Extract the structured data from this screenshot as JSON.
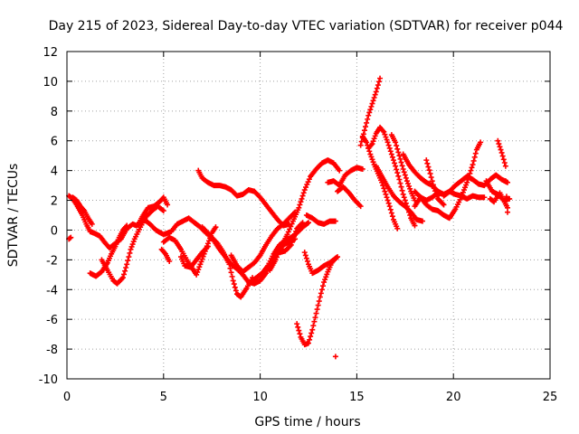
{
  "chart_data": {
    "type": "scatter",
    "title": "Day 215 of 2023, Sidereal Day-to-day VTEC variation (SDTVAR) for receiver p044",
    "xlabel": "GPS time / hours",
    "ylabel": "SDTVAR / TECUs",
    "xlim": [
      0,
      25
    ],
    "ylim": [
      -10,
      12
    ],
    "xticks": [
      0,
      5,
      10,
      15,
      20,
      25
    ],
    "yticks": [
      -10,
      -8,
      -6,
      -4,
      -2,
      0,
      2,
      4,
      6,
      8,
      10,
      12
    ],
    "grid": true,
    "marker": "+",
    "color": "#ff0000",
    "tracks": [
      [
        [
          0.1,
          2.3
        ],
        [
          0.3,
          2.1
        ],
        [
          0.5,
          1.7
        ],
        [
          0.8,
          1.0
        ],
        [
          1.0,
          0.4
        ],
        [
          1.2,
          -0.1
        ],
        [
          1.4,
          -0.2
        ],
        [
          1.7,
          -0.4
        ],
        [
          2.0,
          -0.9
        ],
        [
          2.2,
          -1.2
        ],
        [
          2.5,
          -0.9
        ],
        [
          2.8,
          -0.6
        ],
        [
          3.1,
          0.1
        ],
        [
          3.4,
          0.4
        ],
        [
          3.6,
          0.3
        ],
        [
          3.8,
          0.5
        ]
      ],
      [
        [
          0.1,
          -0.6
        ],
        [
          0.2,
          -0.5
        ]
      ],
      [
        [
          0.3,
          2.2
        ],
        [
          0.5,
          2.0
        ],
        [
          0.7,
          1.6
        ],
        [
          0.9,
          1.3
        ],
        [
          1.1,
          0.8
        ],
        [
          1.3,
          0.4
        ]
      ],
      [
        [
          1.2,
          -2.9
        ],
        [
          1.5,
          -3.1
        ],
        [
          1.8,
          -2.8
        ],
        [
          2.1,
          -2.2
        ],
        [
          2.3,
          -1.6
        ],
        [
          2.5,
          -1.1
        ],
        [
          2.7,
          -0.5
        ],
        [
          2.9,
          0.0
        ],
        [
          3.1,
          0.3
        ]
      ],
      [
        [
          1.8,
          -2.0
        ],
        [
          2.1,
          -2.7
        ],
        [
          2.4,
          -3.4
        ],
        [
          2.6,
          -3.6
        ],
        [
          2.9,
          -3.2
        ],
        [
          3.1,
          -2.3
        ],
        [
          3.3,
          -1.3
        ],
        [
          3.5,
          -0.6
        ],
        [
          3.8,
          0.2
        ],
        [
          4.1,
          0.9
        ],
        [
          4.4,
          1.3
        ],
        [
          4.7,
          1.6
        ],
        [
          5.0,
          1.3
        ]
      ],
      [
        [
          3.7,
          0.4
        ],
        [
          3.9,
          0.9
        ],
        [
          4.2,
          1.5
        ],
        [
          4.5,
          1.6
        ],
        [
          4.8,
          1.9
        ],
        [
          5.0,
          2.2
        ],
        [
          5.2,
          1.7
        ]
      ],
      [
        [
          3.6,
          0.3
        ],
        [
          4.0,
          0.7
        ],
        [
          4.3,
          0.4
        ],
        [
          4.6,
          0.0
        ],
        [
          5.0,
          -0.3
        ],
        [
          5.4,
          -0.1
        ],
        [
          5.7,
          0.4
        ],
        [
          6.0,
          0.6
        ],
        [
          6.3,
          0.8
        ],
        [
          6.6,
          0.5
        ],
        [
          6.9,
          0.2
        ],
        [
          7.2,
          -0.2
        ],
        [
          7.5,
          -0.5
        ],
        [
          7.8,
          -0.9
        ],
        [
          8.1,
          -1.5
        ],
        [
          8.4,
          -2.3
        ],
        [
          8.6,
          -3.4
        ],
        [
          8.8,
          -4.3
        ],
        [
          9.0,
          -4.5
        ],
        [
          9.3,
          -3.9
        ],
        [
          9.6,
          -3.2
        ]
      ],
      [
        [
          4.9,
          -1.3
        ],
        [
          5.1,
          -1.6
        ],
        [
          5.3,
          -2.1
        ]
      ],
      [
        [
          5.0,
          -0.8
        ],
        [
          5.3,
          -0.5
        ],
        [
          5.6,
          -0.7
        ],
        [
          5.9,
          -1.3
        ],
        [
          6.2,
          -2.0
        ],
        [
          6.5,
          -2.6
        ],
        [
          6.7,
          -3.0
        ],
        [
          6.9,
          -2.3
        ],
        [
          7.1,
          -1.6
        ],
        [
          7.3,
          -0.9
        ],
        [
          7.5,
          -0.2
        ],
        [
          7.7,
          0.2
        ]
      ],
      [
        [
          5.9,
          -1.8
        ],
        [
          6.1,
          -2.4
        ],
        [
          6.4,
          -2.5
        ],
        [
          6.7,
          -2.0
        ],
        [
          7.0,
          -1.5
        ],
        [
          7.3,
          -1.1
        ]
      ],
      [
        [
          6.8,
          4.0
        ],
        [
          7.0,
          3.5
        ],
        [
          7.3,
          3.2
        ],
        [
          7.6,
          3.0
        ],
        [
          7.9,
          3.0
        ],
        [
          8.2,
          2.9
        ],
        [
          8.5,
          2.7
        ],
        [
          8.8,
          2.3
        ],
        [
          9.1,
          2.4
        ],
        [
          9.4,
          2.7
        ],
        [
          9.7,
          2.6
        ],
        [
          10.0,
          2.2
        ],
        [
          10.3,
          1.7
        ],
        [
          10.6,
          1.2
        ],
        [
          10.9,
          0.7
        ],
        [
          11.2,
          0.3
        ],
        [
          11.5,
          0.4
        ]
      ],
      [
        [
          7.0,
          0.2
        ],
        [
          7.3,
          -0.2
        ],
        [
          7.6,
          -0.7
        ],
        [
          7.9,
          -1.3
        ],
        [
          8.2,
          -1.8
        ],
        [
          8.5,
          -2.3
        ],
        [
          8.8,
          -2.6
        ],
        [
          9.1,
          -3.0
        ],
        [
          9.4,
          -3.5
        ],
        [
          9.7,
          -3.6
        ],
        [
          10.0,
          -3.4
        ],
        [
          10.3,
          -2.9
        ],
        [
          10.6,
          -2.2
        ],
        [
          10.9,
          -1.5
        ],
        [
          11.2,
          -1.0
        ],
        [
          11.5,
          -0.8
        ],
        [
          11.8,
          -0.6
        ]
      ],
      [
        [
          8.5,
          -1.7
        ],
        [
          8.8,
          -2.4
        ],
        [
          9.1,
          -2.8
        ],
        [
          9.4,
          -2.5
        ],
        [
          9.7,
          -2.2
        ],
        [
          10.0,
          -1.7
        ],
        [
          10.3,
          -1.0
        ],
        [
          10.6,
          -0.4
        ],
        [
          10.9,
          0.1
        ],
        [
          11.2,
          0.4
        ],
        [
          11.5,
          0.8
        ],
        [
          11.8,
          1.2
        ]
      ],
      [
        [
          9.5,
          -3.5
        ],
        [
          9.8,
          -3.2
        ],
        [
          10.1,
          -2.9
        ],
        [
          10.4,
          -2.4
        ],
        [
          10.7,
          -1.6
        ],
        [
          11.0,
          -1.0
        ],
        [
          11.3,
          -0.7
        ],
        [
          11.6,
          -0.5
        ],
        [
          11.9,
          -0.2
        ],
        [
          12.2,
          0.2
        ],
        [
          12.5,
          0.5
        ]
      ],
      [
        [
          10.5,
          -2.7
        ],
        [
          10.8,
          -2.0
        ],
        [
          11.1,
          -1.1
        ],
        [
          11.4,
          -0.3
        ],
        [
          11.7,
          0.6
        ],
        [
          12.0,
          1.5
        ],
        [
          12.3,
          2.7
        ],
        [
          12.6,
          3.6
        ],
        [
          12.9,
          4.1
        ],
        [
          13.2,
          4.5
        ],
        [
          13.5,
          4.7
        ],
        [
          13.8,
          4.5
        ],
        [
          14.1,
          4.0
        ]
      ],
      [
        [
          11.0,
          -1.5
        ],
        [
          11.3,
          -1.4
        ],
        [
          11.6,
          -1.0
        ],
        [
          11.9,
          0.1
        ],
        [
          12.2,
          0.5
        ]
      ],
      [
        [
          11.9,
          -6.3
        ],
        [
          12.1,
          -7.2
        ],
        [
          12.3,
          -7.7
        ],
        [
          12.5,
          -7.6
        ],
        [
          12.7,
          -6.7
        ],
        [
          12.9,
          -5.6
        ],
        [
          13.1,
          -4.5
        ],
        [
          13.3,
          -3.5
        ],
        [
          13.5,
          -2.8
        ],
        [
          13.7,
          -2.2
        ],
        [
          13.9,
          -1.9
        ],
        [
          14.0,
          -1.8
        ]
      ],
      [
        [
          12.3,
          -1.5
        ],
        [
          12.5,
          -2.3
        ],
        [
          12.7,
          -2.9
        ],
        [
          13.0,
          -2.7
        ],
        [
          13.3,
          -2.4
        ],
        [
          13.6,
          -2.2
        ],
        [
          13.9,
          -1.9
        ]
      ],
      [
        [
          12.4,
          1.0
        ],
        [
          12.7,
          0.8
        ],
        [
          13.0,
          0.5
        ],
        [
          13.3,
          0.4
        ],
        [
          13.6,
          0.6
        ],
        [
          13.9,
          0.6
        ]
      ],
      [
        [
          13.5,
          3.2
        ],
        [
          13.8,
          3.3
        ],
        [
          14.1,
          3.0
        ],
        [
          14.4,
          3.7
        ],
        [
          14.7,
          4.0
        ],
        [
          15.0,
          4.2
        ],
        [
          15.3,
          4.1
        ]
      ],
      [
        [
          13.9,
          -8.5
        ]
      ],
      [
        [
          14.0,
          2.6
        ],
        [
          14.3,
          2.9
        ],
        [
          14.6,
          2.5
        ],
        [
          14.9,
          2.0
        ],
        [
          15.2,
          1.6
        ]
      ],
      [
        [
          15.2,
          5.7
        ],
        [
          15.4,
          6.7
        ],
        [
          15.6,
          7.7
        ],
        [
          15.8,
          8.5
        ],
        [
          16.0,
          9.3
        ],
        [
          16.2,
          10.2
        ]
      ],
      [
        [
          15.3,
          6.3
        ],
        [
          15.5,
          5.9
        ],
        [
          15.7,
          5.1
        ],
        [
          15.9,
          4.4
        ],
        [
          16.1,
          3.8
        ],
        [
          16.3,
          3.2
        ],
        [
          16.5,
          2.4
        ],
        [
          16.7,
          1.6
        ],
        [
          16.9,
          0.7
        ],
        [
          17.1,
          0.1
        ]
      ],
      [
        [
          15.6,
          5.5
        ],
        [
          15.8,
          5.8
        ],
        [
          16.0,
          6.5
        ],
        [
          16.2,
          6.9
        ],
        [
          16.4,
          6.6
        ],
        [
          16.6,
          5.9
        ],
        [
          16.8,
          5.1
        ],
        [
          17.0,
          4.3
        ],
        [
          17.2,
          3.4
        ],
        [
          17.4,
          2.4
        ],
        [
          17.6,
          1.6
        ],
        [
          17.8,
          0.8
        ],
        [
          18.0,
          0.3
        ]
      ],
      [
        [
          16.0,
          4.3
        ],
        [
          16.3,
          3.6
        ],
        [
          16.6,
          2.9
        ],
        [
          16.9,
          2.3
        ],
        [
          17.2,
          1.9
        ],
        [
          17.5,
          1.6
        ],
        [
          17.8,
          1.2
        ],
        [
          18.1,
          0.7
        ],
        [
          18.4,
          0.6
        ]
      ],
      [
        [
          16.8,
          6.4
        ],
        [
          17.0,
          5.9
        ],
        [
          17.2,
          5.0
        ],
        [
          17.4,
          4.1
        ],
        [
          17.6,
          3.3
        ],
        [
          17.8,
          2.6
        ],
        [
          18.0,
          2.0
        ]
      ],
      [
        [
          17.4,
          5.1
        ],
        [
          17.7,
          4.4
        ],
        [
          18.0,
          3.9
        ],
        [
          18.3,
          3.5
        ],
        [
          18.6,
          3.2
        ],
        [
          18.9,
          3.0
        ],
        [
          19.2,
          2.6
        ],
        [
          19.5,
          2.4
        ]
      ],
      [
        [
          18.0,
          2.6
        ],
        [
          18.3,
          2.2
        ],
        [
          18.6,
          1.7
        ],
        [
          18.9,
          1.4
        ],
        [
          19.2,
          1.3
        ],
        [
          19.5,
          1.0
        ],
        [
          19.8,
          0.8
        ],
        [
          20.1,
          1.4
        ],
        [
          20.4,
          2.2
        ],
        [
          20.7,
          3.2
        ],
        [
          21.0,
          4.4
        ],
        [
          21.2,
          5.4
        ],
        [
          21.4,
          5.9
        ]
      ],
      [
        [
          18.0,
          1.6
        ],
        [
          18.3,
          2.2
        ],
        [
          18.6,
          2.0
        ],
        [
          18.9,
          2.2
        ],
        [
          19.2,
          2.5
        ],
        [
          19.5,
          2.4
        ],
        [
          19.8,
          2.6
        ],
        [
          20.1,
          2.4
        ],
        [
          20.4,
          2.3
        ],
        [
          20.7,
          2.1
        ],
        [
          21.0,
          2.3
        ],
        [
          21.3,
          2.2
        ],
        [
          21.6,
          2.2
        ]
      ],
      [
        [
          18.6,
          4.7
        ],
        [
          18.8,
          3.8
        ],
        [
          19.0,
          2.8
        ],
        [
          19.2,
          2.1
        ],
        [
          19.5,
          1.7
        ]
      ],
      [
        [
          19.5,
          2.3
        ],
        [
          19.8,
          2.6
        ],
        [
          20.1,
          3.0
        ],
        [
          20.4,
          3.3
        ],
        [
          20.7,
          3.6
        ],
        [
          21.0,
          3.4
        ],
        [
          21.3,
          3.1
        ],
        [
          21.6,
          3.0
        ],
        [
          21.9,
          3.4
        ],
        [
          22.2,
          3.7
        ],
        [
          22.5,
          3.4
        ],
        [
          22.8,
          3.2
        ]
      ],
      [
        [
          21.7,
          3.3
        ],
        [
          22.0,
          2.6
        ],
        [
          22.3,
          2.4
        ],
        [
          22.6,
          2.0
        ],
        [
          22.8,
          1.5
        ]
      ],
      [
        [
          21.9,
          2.1
        ],
        [
          22.1,
          1.9
        ],
        [
          22.4,
          2.5
        ],
        [
          22.6,
          2.0
        ],
        [
          22.9,
          2.1
        ]
      ],
      [
        [
          22.3,
          6.0
        ],
        [
          22.5,
          5.2
        ],
        [
          22.7,
          4.3
        ]
      ],
      [
        [
          22.7,
          3.3
        ],
        [
          22.8,
          1.2
        ]
      ]
    ]
  }
}
